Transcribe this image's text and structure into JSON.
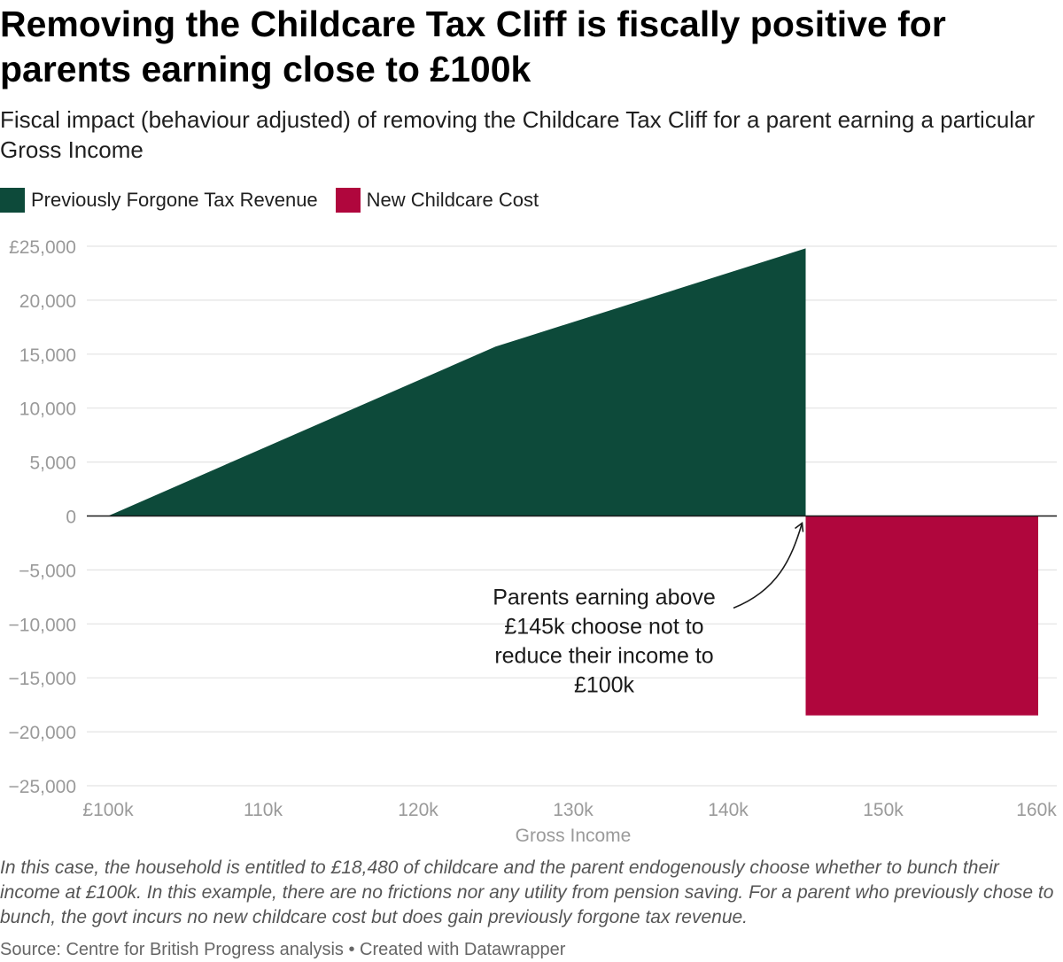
{
  "header": {
    "title": "Removing the Childcare Tax Cliff is fiscally positive for parents earning close to £100k",
    "subtitle": "Fiscal impact (behaviour adjusted) of removing the Childcare Tax Cliff for a parent earning a particular Gross Income"
  },
  "legend": {
    "items": [
      {
        "label": "Previously Forgone Tax Revenue",
        "color": "#0d4a3a"
      },
      {
        "label": "New Childcare Cost",
        "color": "#b0063d"
      }
    ]
  },
  "chart_data": {
    "type": "area",
    "xlabel": "Gross Income",
    "ylabel": "",
    "xlim": [
      100000,
      160000
    ],
    "ylim": [
      -25000,
      25000
    ],
    "x_ticks": [
      100000,
      110000,
      120000,
      130000,
      140000,
      150000,
      160000
    ],
    "x_tick_labels": [
      "£100k",
      "110k",
      "120k",
      "130k",
      "140k",
      "150k",
      "160k"
    ],
    "y_ticks": [
      25000,
      20000,
      15000,
      10000,
      5000,
      0,
      -5000,
      -10000,
      -15000,
      -20000,
      -25000
    ],
    "y_tick_labels": [
      "£25,000",
      "20,000",
      "15,000",
      "10,000",
      "5,000",
      "0",
      "−5,000",
      "−10,000",
      "−15,000",
      "−20,000",
      "−25,000"
    ],
    "grid": true,
    "series": [
      {
        "name": "Previously Forgone Tax Revenue",
        "color": "#0d4a3a",
        "points": [
          [
            100000,
            0
          ],
          [
            125000,
            15700
          ],
          [
            145000,
            24800
          ],
          [
            145000,
            0
          ]
        ]
      },
      {
        "name": "New Childcare Cost",
        "color": "#b0063d",
        "points": [
          [
            145000,
            0
          ],
          [
            160000,
            0
          ],
          [
            160000,
            -18480
          ],
          [
            145000,
            -18480
          ]
        ]
      }
    ],
    "annotations": [
      {
        "text_lines": [
          "Parents earning above",
          "£145k choose not to",
          "reduce their income to",
          "£100k"
        ],
        "text_anchor": [
          132000,
          -8200
        ],
        "arrow_to": [
          145000,
          0
        ]
      }
    ]
  },
  "footer": {
    "notes": "In this case, the household is entitled to £18,480 of childcare and the parent endogenously choose whether to bunch their income at £100k. In this example, there are no frictions nor any utility from pension saving. For a parent who previously chose to bunch, the govt incurs no new childcare cost but does gain previously forgone tax revenue.",
    "source": "Source: Centre for British Progress analysis • Created with Datawrapper"
  }
}
